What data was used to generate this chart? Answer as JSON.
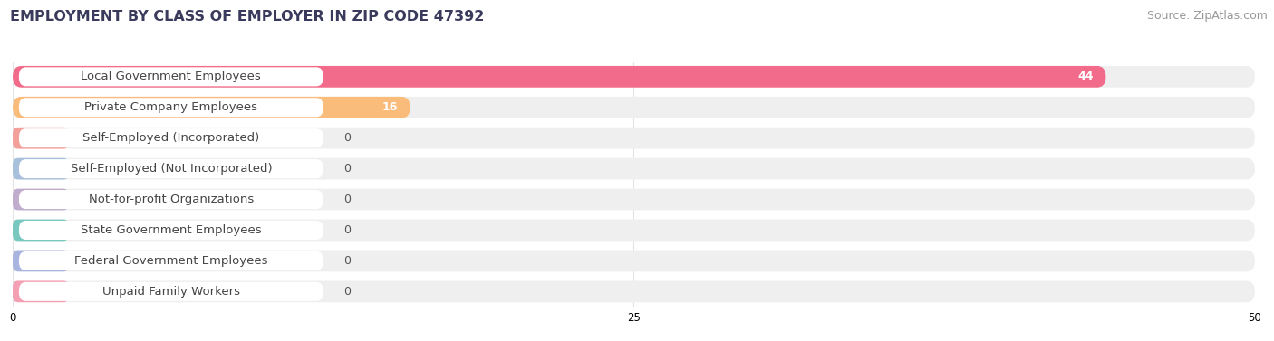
{
  "title": "EMPLOYMENT BY CLASS OF EMPLOYER IN ZIP CODE 47392",
  "source": "Source: ZipAtlas.com",
  "categories": [
    "Local Government Employees",
    "Private Company Employees",
    "Self-Employed (Incorporated)",
    "Self-Employed (Not Incorporated)",
    "Not-for-profit Organizations",
    "State Government Employees",
    "Federal Government Employees",
    "Unpaid Family Workers"
  ],
  "values": [
    44,
    16,
    0,
    0,
    0,
    0,
    0,
    0
  ],
  "bar_colors": [
    "#F26B8A",
    "#F9BC7A",
    "#F4A09A",
    "#A8C0DC",
    "#C0ACCC",
    "#78C8C0",
    "#AAB4E0",
    "#F4A0B4"
  ],
  "row_bg_color": "#EFEFEF",
  "label_bg_color": "#FFFFFF",
  "xlim": [
    0,
    50
  ],
  "xticks": [
    0,
    25,
    50
  ],
  "grid_color": "#D8D8D8",
  "title_fontsize": 11.5,
  "source_fontsize": 9,
  "label_fontsize": 9.5,
  "value_fontsize": 9,
  "background_color": "#FFFFFF",
  "title_color": "#3A3A5C",
  "source_color": "#999999",
  "label_color": "#444444",
  "value_color_on_bar": "#FFFFFF",
  "value_color_off_bar": "#555555"
}
